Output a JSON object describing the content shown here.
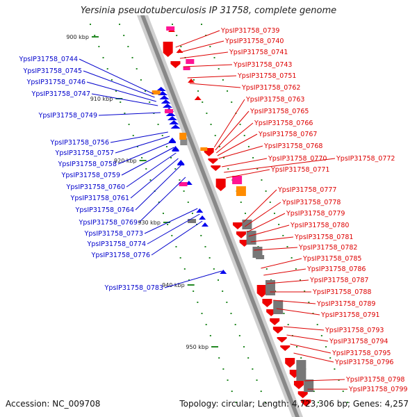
{
  "title": "Yersinia pseudotuberculosis IP 31758, complete genome",
  "footer": {
    "accession": "Accession: NC_009708",
    "topology": "Topology: circular; Length: 4,723,306 bp; Genes: 4,257"
  },
  "colors": {
    "left_labels": "#0000cc",
    "right_labels": "#dd0000",
    "backbone": "#888888",
    "tick": "#228822",
    "orange": "#ff8c00",
    "magenta": "#ff1493",
    "gray": "#777777"
  },
  "kbp_markers": [
    "900 kbp",
    "910 kbp",
    "920 kbp",
    "930 kbp",
    "940 kbp",
    "950 kbp"
  ],
  "left_genes": [
    "YpsIP31758_0744",
    "YpsIP31758_0745",
    "YpsIP31758_0746",
    "YpsIP31758_0747",
    "YpsIP31758_0749",
    "YpsIP31758_0756",
    "YpsIP31758_0757",
    "YpsIP31758_0758",
    "YpsIP31758_0759",
    "YpsIP31758_0760",
    "YpsIP31758_0761",
    "YpsIP31758_0764",
    "YpsIP31758_0769",
    "YpsIP31758_0773",
    "YpsIP31758_0774",
    "YpsIP31758_0776",
    "YpsIP31758_0783"
  ],
  "right_genes": [
    "YpsIP31758_0739",
    "YpsIP31758_0740",
    "YpsIP31758_0741",
    "YpsIP31758_0743",
    "YpsIP31758_0751",
    "YpsIP31758_0762",
    "YpsIP31758_0763",
    "YpsIP31758_0765",
    "YpsIP31758_0766",
    "YpsIP31758_0767",
    "YpsIP31758_0768",
    "YpsIP31758_0770",
    "YpsIP31758_0772",
    "YpsIP31758_0771",
    "YpsIP31758_0777",
    "YpsIP31758_0778",
    "YpsIP31758_0779",
    "YpsIP31758_0780",
    "YpsIP31758_0781",
    "YpsIP31758_0782",
    "YpsIP31758_0785",
    "YpsIP31758_0786",
    "YpsIP31758_0787",
    "YpsIP31758_0788",
    "YpsIP31758_0789",
    "YpsIP31758_0791",
    "YpsIP31758_0793",
    "YpsIP31758_0794",
    "YpsIP31758_0795",
    "YpsIP31758_0796",
    "YpsIP31758_0798",
    "YpsIP31758_0799"
  ]
}
